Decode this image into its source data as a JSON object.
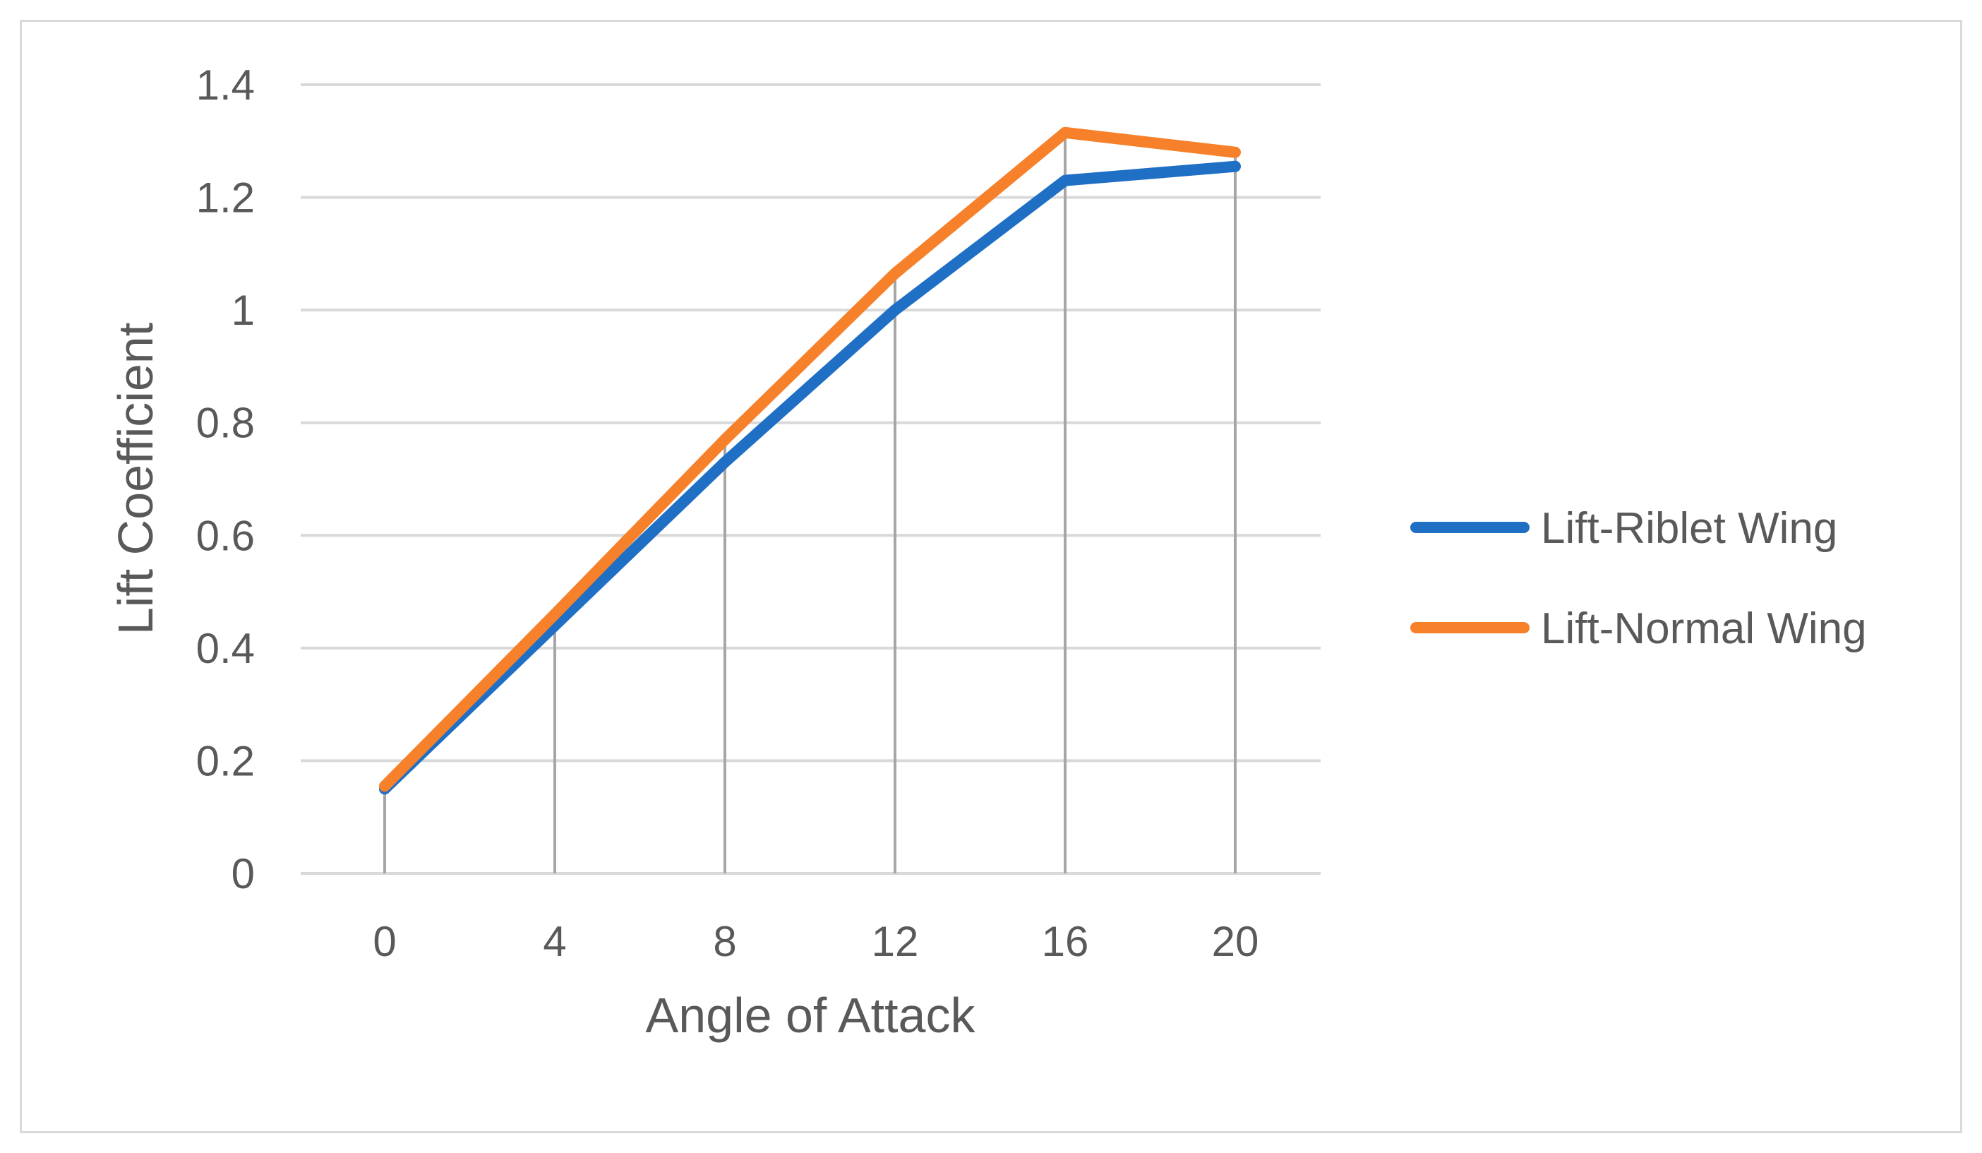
{
  "chart_data": {
    "type": "line",
    "title": "",
    "xlabel": "Angle of Attack",
    "ylabel": "Lift Coefficient",
    "categories": [
      "0",
      "4",
      "8",
      "12",
      "16",
      "20"
    ],
    "x": [
      0,
      4,
      8,
      12,
      16,
      20
    ],
    "y_ticks": [
      "0",
      "0.2",
      "0.4",
      "0.6",
      "0.8",
      "1",
      "1.2",
      "1.4"
    ],
    "ylim": [
      0,
      1.4
    ],
    "grid": "horizontal major gridlines",
    "drop_lines": true,
    "legend_position": "right",
    "series": [
      {
        "name": "Lift-Riblet Wing",
        "color": "#1f6fc5",
        "values": [
          0.15,
          0.44,
          0.73,
          1.0,
          1.23,
          1.255
        ]
      },
      {
        "name": "Lift-Normal Wing",
        "color": "#f7802a",
        "values": [
          0.155,
          0.46,
          0.77,
          1.065,
          1.315,
          1.28
        ]
      }
    ],
    "colors": {
      "gridline": "#d9d9d9",
      "drop_line": "#a6a6a6",
      "text": "#595959",
      "frame": "#d9d9d9"
    }
  }
}
